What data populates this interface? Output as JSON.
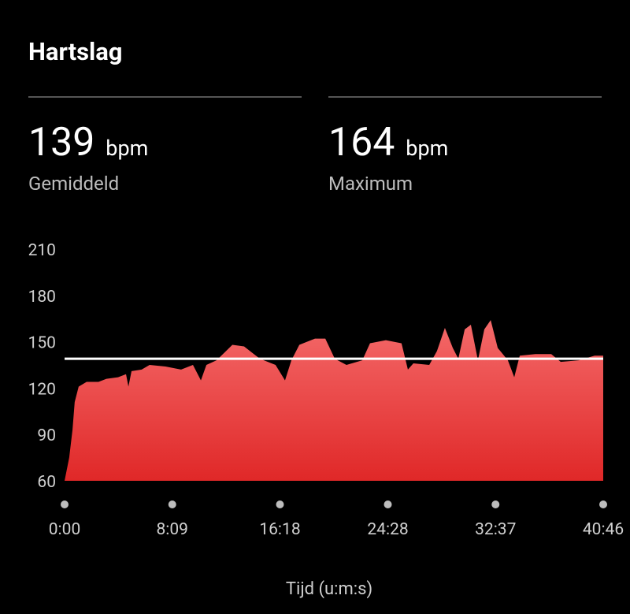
{
  "header": {
    "title": "Hartslag"
  },
  "stats": [
    {
      "value": 139,
      "unit": "bpm",
      "label": "Gemiddeld"
    },
    {
      "value": 164,
      "unit": "bpm",
      "label": "Maximum"
    }
  ],
  "chart_data": {
    "type": "area",
    "xlabel": "Tijd (u:m:s)",
    "x": [
      0,
      21,
      36,
      46,
      64,
      100,
      154,
      190,
      243,
      279,
      290,
      304,
      350,
      386,
      458,
      529,
      583,
      619,
      644,
      690,
      726,
      762,
      815,
      851,
      887,
      958,
      1001,
      1030,
      1066,
      1137,
      1184,
      1227,
      1280,
      1352,
      1387,
      1459,
      1530,
      1559,
      1584,
      1656,
      1691,
      1727,
      1763,
      1788,
      1817,
      1845,
      1877,
      1906,
      1935,
      1967,
      2013,
      2042,
      2067,
      2138,
      2210,
      2253,
      2335,
      2407,
      2446
    ],
    "values": [
      60,
      75,
      93,
      111,
      121,
      124,
      124,
      126,
      127,
      129,
      121,
      131,
      132,
      135,
      134,
      132,
      135,
      125,
      135,
      138,
      143,
      148,
      147,
      143,
      139,
      135,
      125,
      138,
      148,
      152,
      152,
      139,
      135,
      138,
      149,
      151,
      149,
      132,
      136,
      135,
      144,
      159,
      146,
      139,
      158,
      161,
      138,
      158,
      164,
      146,
      138,
      127,
      141,
      142,
      142,
      137,
      138,
      141,
      141
    ],
    "gradient": [
      "#f46a6a",
      "#e02828"
    ],
    "xlim": [
      0,
      2446
    ],
    "xticks": [
      {
        "value": 0,
        "label": "0:00"
      },
      {
        "value": 489,
        "label": "8:09"
      },
      {
        "value": 978,
        "label": "16:18"
      },
      {
        "value": 1468,
        "label": "24:28"
      },
      {
        "value": 1957,
        "label": "32:37"
      },
      {
        "value": 2446,
        "label": "40:46"
      }
    ],
    "ylim": [
      60,
      210
    ],
    "yticks": [
      60,
      90,
      120,
      150,
      180,
      210
    ],
    "average_line_color": "#ffffff"
  }
}
